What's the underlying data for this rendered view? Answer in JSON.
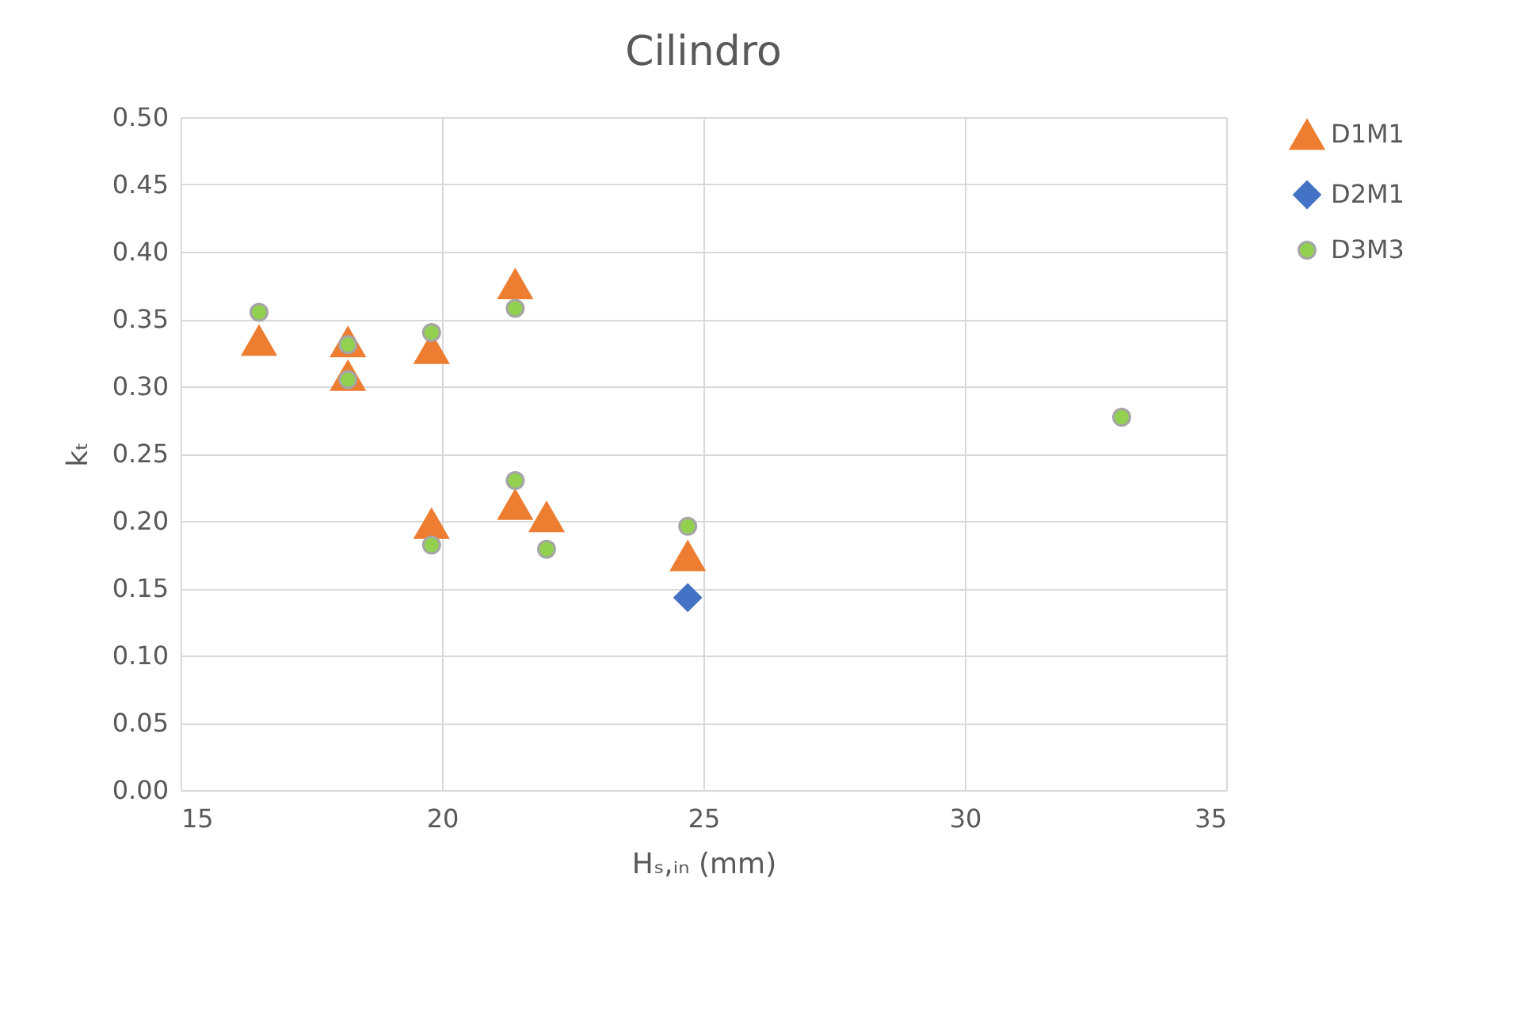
{
  "chart_data": {
    "type": "scatter",
    "title": "Cilindro",
    "xlabel": "Hₛ,ᵢₙ  (mm)",
    "ylabel": "kₜ",
    "xlim": [
      15,
      35
    ],
    "xticks": [
      15,
      20,
      25,
      30,
      35
    ],
    "ylim": [
      0,
      0.5
    ],
    "yticks": [
      {
        "value": 0,
        "label": "0.00"
      },
      {
        "value": 0.05,
        "label": "0.05"
      },
      {
        "value": 0.1,
        "label": "0.10"
      },
      {
        "value": 0.15,
        "label": "0.15"
      },
      {
        "value": 0.2,
        "label": "0.20"
      },
      {
        "value": 0.25,
        "label": "0.25"
      },
      {
        "value": 0.3,
        "label": "0.30"
      },
      {
        "value": 0.35,
        "label": "0.35"
      },
      {
        "value": 0.4,
        "label": "0.40"
      },
      {
        "value": 0.45,
        "label": "0.45"
      },
      {
        "value": 0.5,
        "label": "0.50"
      }
    ],
    "grid": true,
    "legend": "right",
    "series": [
      {
        "name": "D1M1",
        "color": "#ed7d31",
        "marker": "triangle",
        "x": [
          16.5,
          18.2,
          18.2,
          19.8,
          21.4,
          19.8,
          21.4,
          22.0,
          24.7
        ],
        "values": [
          0.334,
          0.333,
          0.308,
          0.328,
          0.376,
          0.198,
          0.212,
          0.203,
          0.174
        ]
      },
      {
        "name": "D2M1",
        "color": "#4472c4",
        "marker": "diamond",
        "x": [
          24.7
        ],
        "values": [
          0.143
        ]
      },
      {
        "name": "D3M3",
        "color": "#92d050",
        "marker": "circle",
        "x": [
          16.5,
          18.2,
          18.2,
          19.8,
          21.4,
          21.4,
          19.8,
          22.0,
          24.7,
          33.0
        ],
        "values": [
          0.355,
          0.331,
          0.305,
          0.34,
          0.358,
          0.23,
          0.182,
          0.179,
          0.196,
          0.277
        ]
      }
    ]
  }
}
